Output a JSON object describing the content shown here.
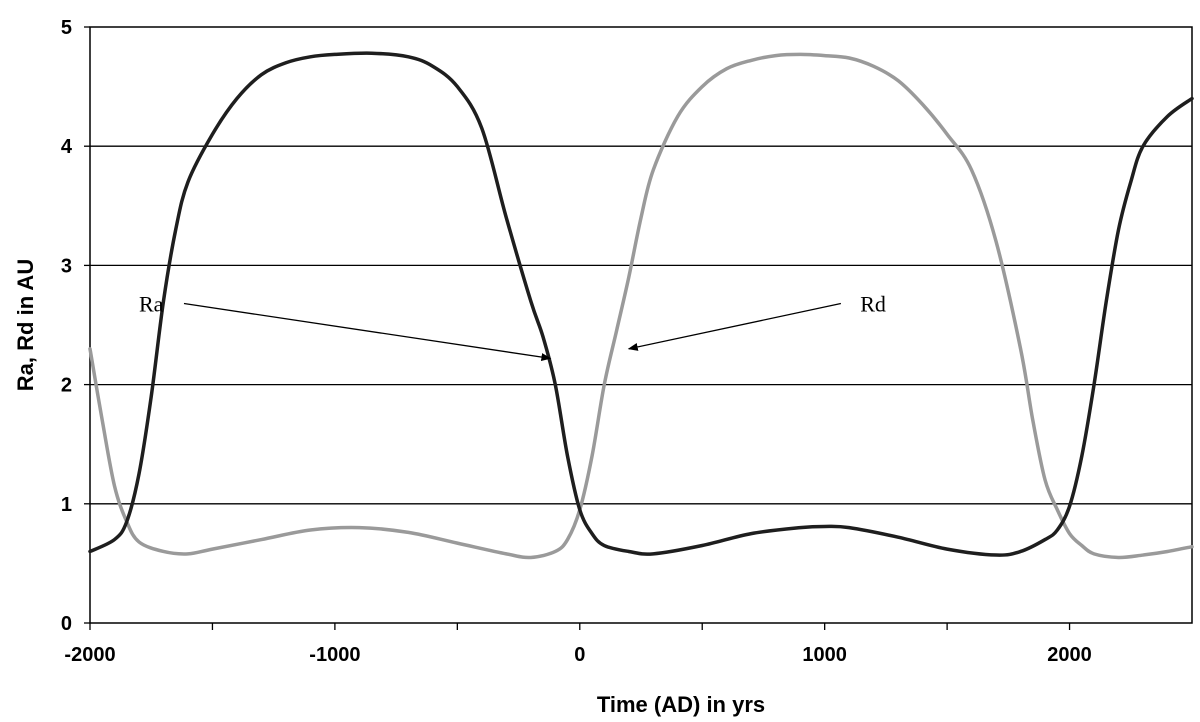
{
  "chart_data": {
    "type": "line",
    "title": "",
    "xlabel": "Time (AD) in yrs",
    "ylabel": "Ra, Rd in AU",
    "xlim": [
      -2000,
      2500
    ],
    "ylim": [
      0,
      5
    ],
    "x_ticks": [
      -2000,
      -1000,
      0,
      1000,
      2000
    ],
    "x_minor_ticks": [
      -1500,
      -500,
      500,
      1500
    ],
    "y_ticks": [
      0,
      1,
      2,
      3,
      4,
      5
    ],
    "grid": "horizontal",
    "legend": "none",
    "series": [
      {
        "name": "Ra",
        "color": "#1e1e1e",
        "points": [
          [
            -2000,
            0.6
          ],
          [
            -1900,
            0.7
          ],
          [
            -1850,
            0.85
          ],
          [
            -1800,
            1.25
          ],
          [
            -1750,
            1.9
          ],
          [
            -1700,
            2.7
          ],
          [
            -1650,
            3.3
          ],
          [
            -1600,
            3.7
          ],
          [
            -1500,
            4.1
          ],
          [
            -1400,
            4.4
          ],
          [
            -1300,
            4.6
          ],
          [
            -1200,
            4.7
          ],
          [
            -1100,
            4.75
          ],
          [
            -1000,
            4.77
          ],
          [
            -850,
            4.78
          ],
          [
            -700,
            4.75
          ],
          [
            -600,
            4.67
          ],
          [
            -500,
            4.5
          ],
          [
            -400,
            4.15
          ],
          [
            -300,
            3.4
          ],
          [
            -200,
            2.7
          ],
          [
            -150,
            2.4
          ],
          [
            -100,
            2.0
          ],
          [
            -50,
            1.4
          ],
          [
            0,
            0.95
          ],
          [
            50,
            0.75
          ],
          [
            100,
            0.65
          ],
          [
            200,
            0.6
          ],
          [
            300,
            0.58
          ],
          [
            500,
            0.65
          ],
          [
            700,
            0.75
          ],
          [
            900,
            0.8
          ],
          [
            1000,
            0.81
          ],
          [
            1100,
            0.8
          ],
          [
            1300,
            0.72
          ],
          [
            1500,
            0.62
          ],
          [
            1700,
            0.57
          ],
          [
            1800,
            0.6
          ],
          [
            1900,
            0.7
          ],
          [
            1950,
            0.78
          ],
          [
            2000,
            0.98
          ],
          [
            2050,
            1.4
          ],
          [
            2100,
            2.0
          ],
          [
            2150,
            2.7
          ],
          [
            2200,
            3.3
          ],
          [
            2250,
            3.7
          ],
          [
            2300,
            4.0
          ],
          [
            2400,
            4.25
          ],
          [
            2500,
            4.4
          ]
        ]
      },
      {
        "name": "Rd",
        "color": "#9a9a9a",
        "points": [
          [
            -2000,
            2.3
          ],
          [
            -1950,
            1.7
          ],
          [
            -1900,
            1.15
          ],
          [
            -1850,
            0.85
          ],
          [
            -1800,
            0.68
          ],
          [
            -1700,
            0.6
          ],
          [
            -1600,
            0.58
          ],
          [
            -1500,
            0.62
          ],
          [
            -1300,
            0.7
          ],
          [
            -1100,
            0.78
          ],
          [
            -900,
            0.8
          ],
          [
            -700,
            0.76
          ],
          [
            -500,
            0.67
          ],
          [
            -300,
            0.58
          ],
          [
            -200,
            0.55
          ],
          [
            -100,
            0.6
          ],
          [
            -50,
            0.7
          ],
          [
            0,
            0.95
          ],
          [
            50,
            1.4
          ],
          [
            100,
            2.0
          ],
          [
            150,
            2.45
          ],
          [
            200,
            2.9
          ],
          [
            250,
            3.4
          ],
          [
            300,
            3.8
          ],
          [
            400,
            4.25
          ],
          [
            500,
            4.5
          ],
          [
            600,
            4.65
          ],
          [
            700,
            4.72
          ],
          [
            800,
            4.76
          ],
          [
            900,
            4.77
          ],
          [
            1000,
            4.76
          ],
          [
            1100,
            4.74
          ],
          [
            1200,
            4.67
          ],
          [
            1300,
            4.55
          ],
          [
            1400,
            4.35
          ],
          [
            1500,
            4.1
          ],
          [
            1600,
            3.8
          ],
          [
            1700,
            3.2
          ],
          [
            1800,
            2.3
          ],
          [
            1850,
            1.7
          ],
          [
            1900,
            1.2
          ],
          [
            1950,
            0.95
          ],
          [
            2000,
            0.75
          ],
          [
            2050,
            0.65
          ],
          [
            2100,
            0.58
          ],
          [
            2200,
            0.55
          ],
          [
            2300,
            0.57
          ],
          [
            2400,
            0.6
          ],
          [
            2500,
            0.64
          ]
        ]
      }
    ],
    "annotations": [
      {
        "text": "Ra",
        "label_at": [
          -1800,
          2.68
        ],
        "arrow_from": [
          -1700,
          2.68
        ],
        "arrow_to": [
          -120,
          2.22
        ]
      },
      {
        "text": "Rd",
        "label_at": [
          1250,
          2.68
        ],
        "arrow_from": [
          1200,
          2.68
        ],
        "arrow_to": [
          200,
          2.3
        ]
      }
    ]
  }
}
